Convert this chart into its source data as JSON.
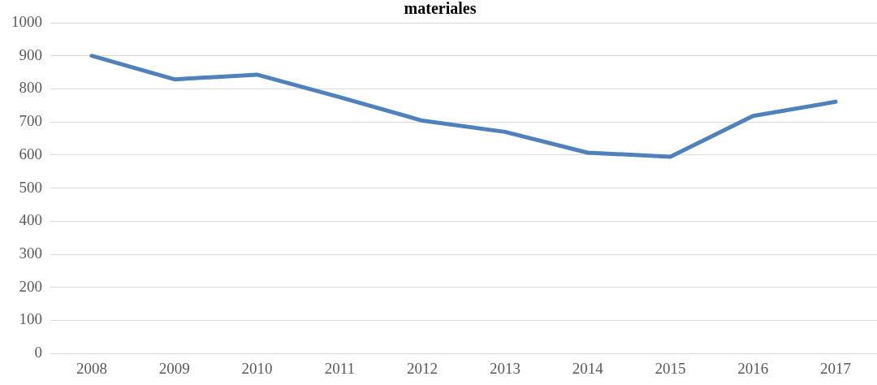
{
  "chart_data": {
    "type": "line",
    "title": "materiales",
    "categories": [
      "2008",
      "2009",
      "2010",
      "2011",
      "2012",
      "2013",
      "2014",
      "2015",
      "2016",
      "2017"
    ],
    "series": [
      {
        "color": "#4f81bd",
        "values": [
          900,
          829,
          843,
          775,
          704,
          670,
          607,
          595,
          718,
          761
        ]
      }
    ],
    "ylim": [
      0,
      1000
    ],
    "yticks": [
      0,
      100,
      200,
      300,
      400,
      500,
      600,
      700,
      800,
      900,
      1000
    ],
    "grid": "y",
    "legend": false,
    "marker": "none"
  }
}
